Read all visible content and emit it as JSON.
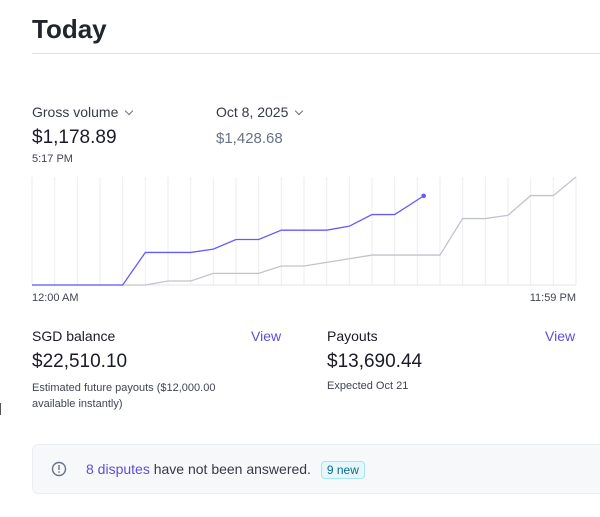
{
  "header": {
    "title": "Today"
  },
  "metric": {
    "selector_label": "Gross volume",
    "value": "$1,178.89",
    "time": "5:17 PM"
  },
  "compare": {
    "selector_label": "Oct 8, 2025",
    "value": "$1,428.68"
  },
  "colors": {
    "accent": "#635bff",
    "compare": "#c0c4cc",
    "link": "#5e4fd6"
  },
  "chart_data": {
    "type": "line",
    "x_start_label": "12:00 AM",
    "x_end_label": "11:59 PM",
    "x_unit": "hour",
    "xlim": [
      0,
      24
    ],
    "ylim": [
      0,
      1428.68
    ],
    "grid": "vertical",
    "series": [
      {
        "name": "Gross volume",
        "color": "#635bff",
        "x": [
          0,
          1,
          2,
          3,
          4,
          5,
          6,
          7,
          8,
          9,
          10,
          11,
          12,
          13,
          14,
          15,
          16,
          17.28
        ],
        "values": [
          0,
          0,
          0,
          0,
          0,
          431,
          431,
          431,
          475,
          602,
          602,
          725,
          725,
          725,
          778,
          932,
          932,
          1178.89
        ]
      },
      {
        "name": "Oct 8, 2025",
        "color": "#c0c4cc",
        "x": [
          0,
          1,
          2,
          3,
          4,
          5,
          6,
          7,
          8,
          9,
          10,
          11,
          12,
          13,
          14,
          15,
          16,
          17,
          18,
          19,
          20,
          21,
          22,
          23,
          24
        ],
        "values": [
          0,
          0,
          0,
          0,
          0,
          0,
          53,
          53,
          154,
          154,
          154,
          251,
          251,
          299,
          347,
          396,
          396,
          396,
          396,
          879,
          879,
          923,
          1183,
          1183,
          1428.68
        ]
      }
    ]
  },
  "balance": {
    "label": "SGD balance",
    "view": "View",
    "value": "$22,510.10",
    "note": "Estimated future payouts ($12,000.00 available instantly)"
  },
  "payouts": {
    "label": "Payouts",
    "view": "View",
    "value": "$13,690.44",
    "note": "Expected Oct 21"
  },
  "disputes": {
    "link": "8 disputes",
    "text": " have not been answered.",
    "badge": "9 new"
  }
}
